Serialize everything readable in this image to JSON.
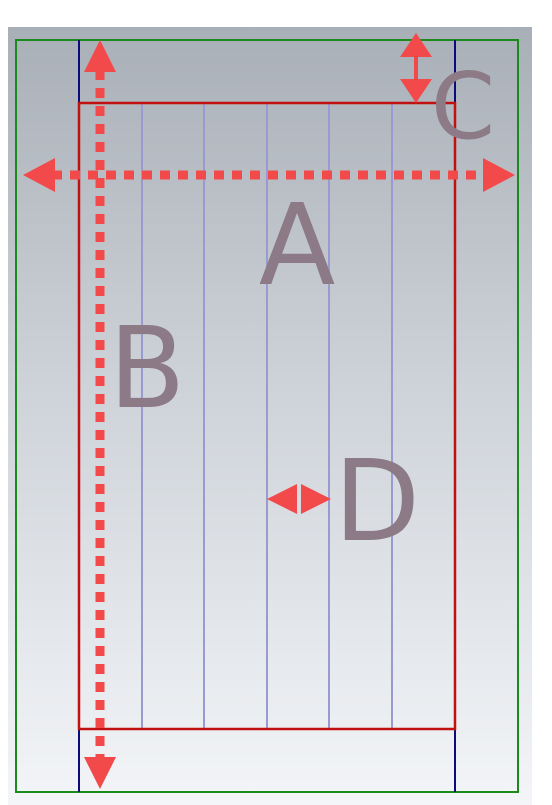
{
  "labels": {
    "a": "A",
    "b": "B",
    "c": "C",
    "d": "D"
  },
  "colors": {
    "background_top": "#a9afb7",
    "background_bottom": "#f3f5f8",
    "outer_border": "#1a8a1a",
    "inner_border": "#c01010",
    "side_lines": "#0b0b7a",
    "column_lines": "#9a9ad2",
    "arrows": "#f24a4a",
    "label_text": "#8c7b87"
  }
}
